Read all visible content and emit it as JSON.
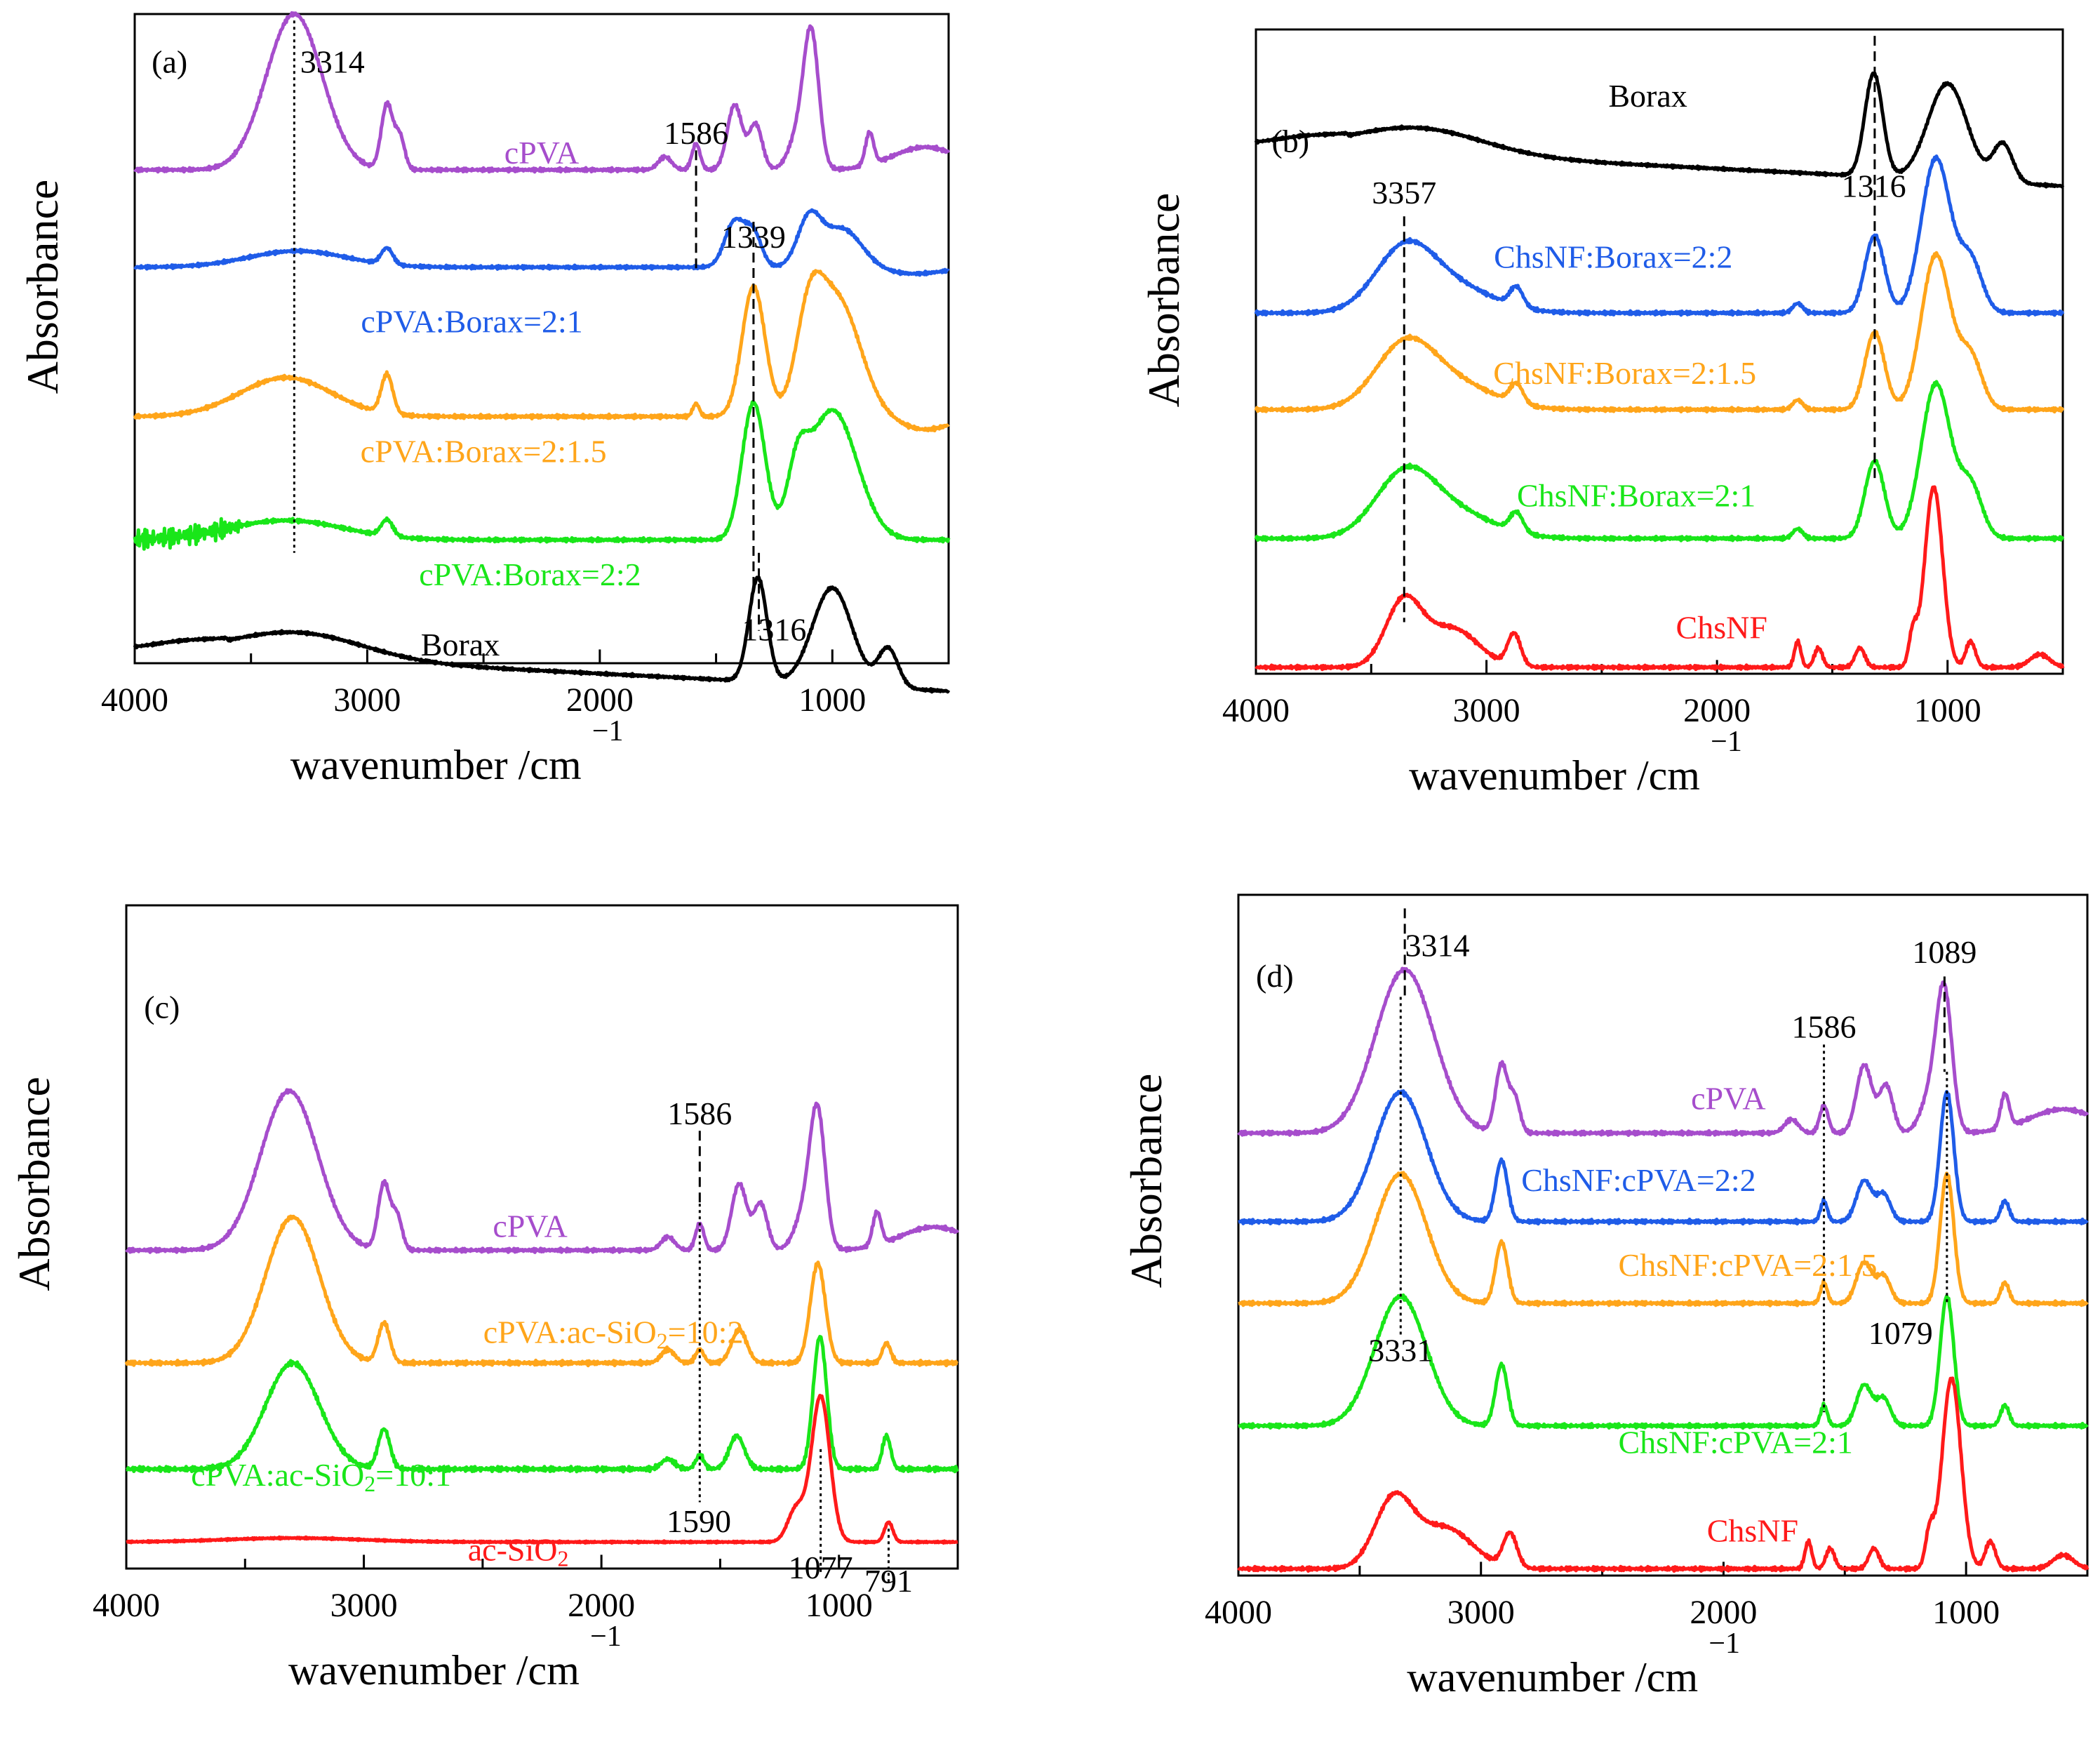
{
  "chart_data": [
    {
      "panel": "(a)",
      "type": "line",
      "xlabel": "wavenumber /cm",
      "xlabel_sup": "−1",
      "ylabel": "Absorbance",
      "xlim": [
        4000,
        500
      ],
      "ylim": [
        0,
        100
      ],
      "xticks": [
        4000,
        3000,
        2000,
        1000
      ],
      "tick_labels": [
        "4000",
        "3000",
        "2000",
        "1000"
      ],
      "series": [
        {
          "name": "cPVA",
          "color": "#a64dcc",
          "offset": 76,
          "kind": "pva"
        },
        {
          "name": "cPVA:Borax=2:1",
          "color": "#1f5ce8",
          "offset": 61,
          "kind": "pvaborax1"
        },
        {
          "name": "cPVA:Borax=2:1.5",
          "color": "#ffa51a",
          "offset": 38,
          "kind": "pvaborax15"
        },
        {
          "name": "cPVA:Borax=2:2",
          "color": "#19e619",
          "offset": 19,
          "kind": "pvaborax2"
        },
        {
          "name": "Borax",
          "color": "#000000",
          "offset": 2,
          "kind": "borax"
        }
      ],
      "labels": [
        {
          "text": "cPVA",
          "x": 2250,
          "y": 77,
          "color": "#a64dcc"
        },
        {
          "text": "cPVA:Borax=2:1",
          "x": 2550,
          "y": 51,
          "color": "#1f5ce8"
        },
        {
          "text": "cPVA:Borax=2:1.5",
          "x": 2500,
          "y": 31,
          "color": "#ffa51a"
        },
        {
          "text": "cPVA:Borax=2:2",
          "x": 2300,
          "y": 12,
          "color": "#19e619"
        },
        {
          "text": "Borax",
          "x": 2600,
          "y": 1.2,
          "color": "#000000"
        },
        {
          "text": "(a)",
          "x": 3850,
          "y": 91,
          "color": "#000000"
        },
        {
          "text": "3314",
          "x": 3150,
          "y": 91,
          "color": "#000000"
        },
        {
          "text": "1586",
          "x": 1586,
          "y": 80,
          "color": "#000000"
        },
        {
          "text": "1339",
          "x": 1339,
          "y": 64,
          "color": "#000000"
        },
        {
          "text": "1316",
          "x": 1250,
          "y": 3.5,
          "color": "#000000"
        }
      ],
      "markers": [
        {
          "x": 3314,
          "y1": 99,
          "y2": 17,
          "style": "dot"
        },
        {
          "x": 1586,
          "y1": 79,
          "y2": 60,
          "style": "dash"
        },
        {
          "x": 1339,
          "y1": 68,
          "y2": 12,
          "style": "dash"
        },
        {
          "x": 1316,
          "y1": 17,
          "y2": 5,
          "style": "dash"
        }
      ]
    },
    {
      "panel": "(b)",
      "type": "line",
      "xlabel": "wavenumber /cm",
      "xlabel_sup": "−1",
      "ylabel": "Absorbance",
      "xlim": [
        4000,
        500
      ],
      "ylim": [
        0,
        100
      ],
      "xticks": [
        4000,
        3000,
        2000,
        1000
      ],
      "tick_labels": [
        "4000",
        "3000",
        "2000",
        "1000"
      ],
      "series": [
        {
          "name": "Borax",
          "color": "#000000",
          "offset": 82,
          "kind": "borax"
        },
        {
          "name": "ChsNF:Borax=2:2",
          "color": "#1f5ce8",
          "offset": 56,
          "kind": "chsborax"
        },
        {
          "name": "ChsNF:Borax=2:1.5",
          "color": "#ffa51a",
          "offset": 41,
          "kind": "chsborax"
        },
        {
          "name": "ChsNF:Borax=2:1",
          "color": "#19e619",
          "offset": 21,
          "kind": "chsborax"
        },
        {
          "name": "ChsNF",
          "color": "#ff1a1a",
          "offset": 1,
          "kind": "chsnf"
        }
      ],
      "labels": [
        {
          "text": "Borax",
          "x": 2300,
          "y": 88,
          "color": "#000000"
        },
        {
          "text": "ChsNF:Borax=2:2",
          "x": 2450,
          "y": 63,
          "color": "#1f5ce8"
        },
        {
          "text": "ChsNF:Borax=2:1.5",
          "x": 2400,
          "y": 45,
          "color": "#ffa51a"
        },
        {
          "text": "ChsNF:Borax=2:1",
          "x": 2350,
          "y": 26,
          "color": "#19e619"
        },
        {
          "text": "ChsNF",
          "x": 1980,
          "y": 5.5,
          "color": "#ff1a1a"
        },
        {
          "text": "(b)",
          "x": 3850,
          "y": 81,
          "color": "#000000"
        },
        {
          "text": "3357",
          "x": 3357,
          "y": 73,
          "color": "#000000"
        },
        {
          "text": "1316",
          "x": 1320,
          "y": 74,
          "color": "#000000"
        }
      ],
      "markers": [
        {
          "x": 3357,
          "y1": 71,
          "y2": 8,
          "style": "dash"
        },
        {
          "x": 1316,
          "y1": 99,
          "y2": 30,
          "style": "dash"
        }
      ]
    },
    {
      "panel": "(c)",
      "type": "line",
      "xlabel": "wavenumber /cm",
      "xlabel_sup": "−1",
      "ylabel": "Absorbance",
      "xlim": [
        4000,
        500
      ],
      "ylim": [
        0,
        100
      ],
      "xticks": [
        4000,
        3000,
        2000,
        1000
      ],
      "tick_labels": [
        "4000",
        "3000",
        "2000",
        "1000"
      ],
      "series": [
        {
          "name": "cPVA",
          "color": "#a64dcc",
          "offset": 48,
          "kind": "pva"
        },
        {
          "name": "cPVA:ac-SiO2=10:2",
          "color": "#ffa51a",
          "offset": 31,
          "kind": "pvasio2"
        },
        {
          "name": "cPVA:ac-SiO2=10:1",
          "color": "#19e619",
          "offset": 15,
          "kind": "pvasio1"
        },
        {
          "name": "ac-SiO2",
          "color": "#ff1a1a",
          "offset": 4,
          "kind": "sio2"
        }
      ],
      "labels": [
        {
          "text": "cPVA",
          "x": 2300,
          "y": 50,
          "color": "#a64dcc",
          "sub": ""
        },
        {
          "text": "cPVA:ac-SiO",
          "sub": "2",
          "after": "=10:2",
          "x": 1950,
          "y": 34,
          "color": "#ffa51a"
        },
        {
          "text": "cPVA:ac-SiO",
          "sub": "2",
          "after": "=10:1",
          "x": 3180,
          "y": 12.5,
          "color": "#19e619"
        },
        {
          "text": "ac-SiO",
          "sub": "2",
          "after": "",
          "x": 2350,
          "y": 1.2,
          "color": "#ff1a1a"
        },
        {
          "text": "(c)",
          "x": 3850,
          "y": 83,
          "color": "#000000",
          "sub": ""
        },
        {
          "text": "1586",
          "x": 1586,
          "y": 67,
          "color": "#000000",
          "sub": ""
        },
        {
          "text": "1590",
          "x": 1590,
          "y": 5.5,
          "color": "#000000",
          "sub": ""
        },
        {
          "text": "1077",
          "x": 1077,
          "y": -1.5,
          "color": "#000000",
          "sub": ""
        },
        {
          "text": "791",
          "x": 791,
          "y": -3.5,
          "color": "#000000",
          "sub": ""
        }
      ],
      "markers": [
        {
          "x": 1586,
          "y1": 66,
          "y2": 55,
          "style": "dash"
        },
        {
          "x": 1586,
          "y1": 55,
          "y2": 10,
          "style": "dot"
        },
        {
          "x": 1077,
          "y1": 18,
          "y2": -1,
          "style": "dot"
        },
        {
          "x": 791,
          "y1": 6,
          "y2": -2,
          "style": "dot"
        }
      ]
    },
    {
      "panel": "(d)",
      "type": "line",
      "xlabel": "wavenumber /cm",
      "xlabel_sup": "−1",
      "ylabel": "Absorbance",
      "xlim": [
        4000,
        500
      ],
      "ylim": [
        0,
        100
      ],
      "xticks": [
        4000,
        3000,
        2000,
        1000
      ],
      "tick_labels": [
        "4000",
        "3000",
        "2000",
        "1000"
      ],
      "series": [
        {
          "name": "cPVA",
          "color": "#a64dcc",
          "offset": 65,
          "kind": "pva"
        },
        {
          "name": "ChsNF:cPVA=2:2",
          "color": "#1f5ce8",
          "offset": 52,
          "kind": "chspva"
        },
        {
          "name": "ChsNF:cPVA=2:1.5",
          "color": "#ffa51a",
          "offset": 40,
          "kind": "chspva"
        },
        {
          "name": "ChsNF:cPVA=2:1",
          "color": "#19e619",
          "offset": 22,
          "kind": "chspva"
        },
        {
          "name": "ChsNF",
          "color": "#ff1a1a",
          "offset": 1,
          "kind": "chsnf"
        }
      ],
      "labels": [
        {
          "text": "cPVA",
          "x": 1980,
          "y": 68.5,
          "color": "#a64dcc"
        },
        {
          "text": "ChsNF:cPVA=2:2",
          "x": 2350,
          "y": 56.5,
          "color": "#1f5ce8"
        },
        {
          "text": "ChsNF:cPVA=2:1.5",
          "x": 1900,
          "y": 44,
          "color": "#ffa51a"
        },
        {
          "text": "ChsNF:cPVA=2:1",
          "x": 1950,
          "y": 18,
          "color": "#19e619"
        },
        {
          "text": "ChsNF",
          "x": 1880,
          "y": 5,
          "color": "#ff1a1a"
        },
        {
          "text": "(d)",
          "x": 3850,
          "y": 86.5,
          "color": "#000000"
        },
        {
          "text": "3314",
          "x": 3180,
          "y": 91,
          "color": "#000000"
        },
        {
          "text": "3331",
          "x": 3331,
          "y": 31.5,
          "color": "#000000"
        },
        {
          "text": "1586",
          "x": 1586,
          "y": 79,
          "color": "#000000"
        },
        {
          "text": "1089",
          "x": 1089,
          "y": 90,
          "color": "#000000"
        },
        {
          "text": "1079",
          "x": 1270,
          "y": 34,
          "color": "#000000"
        }
      ],
      "markers": [
        {
          "x": 3314,
          "y1": 98,
          "y2": 85,
          "style": "dash"
        },
        {
          "x": 3331,
          "y1": 85,
          "y2": 35,
          "style": "dot"
        },
        {
          "x": 1586,
          "y1": 78,
          "y2": 24,
          "style": "dot"
        },
        {
          "x": 1089,
          "y1": 88,
          "y2": 74,
          "style": "dash"
        },
        {
          "x": 1079,
          "y1": 74,
          "y2": 40,
          "style": "dot"
        }
      ]
    }
  ]
}
